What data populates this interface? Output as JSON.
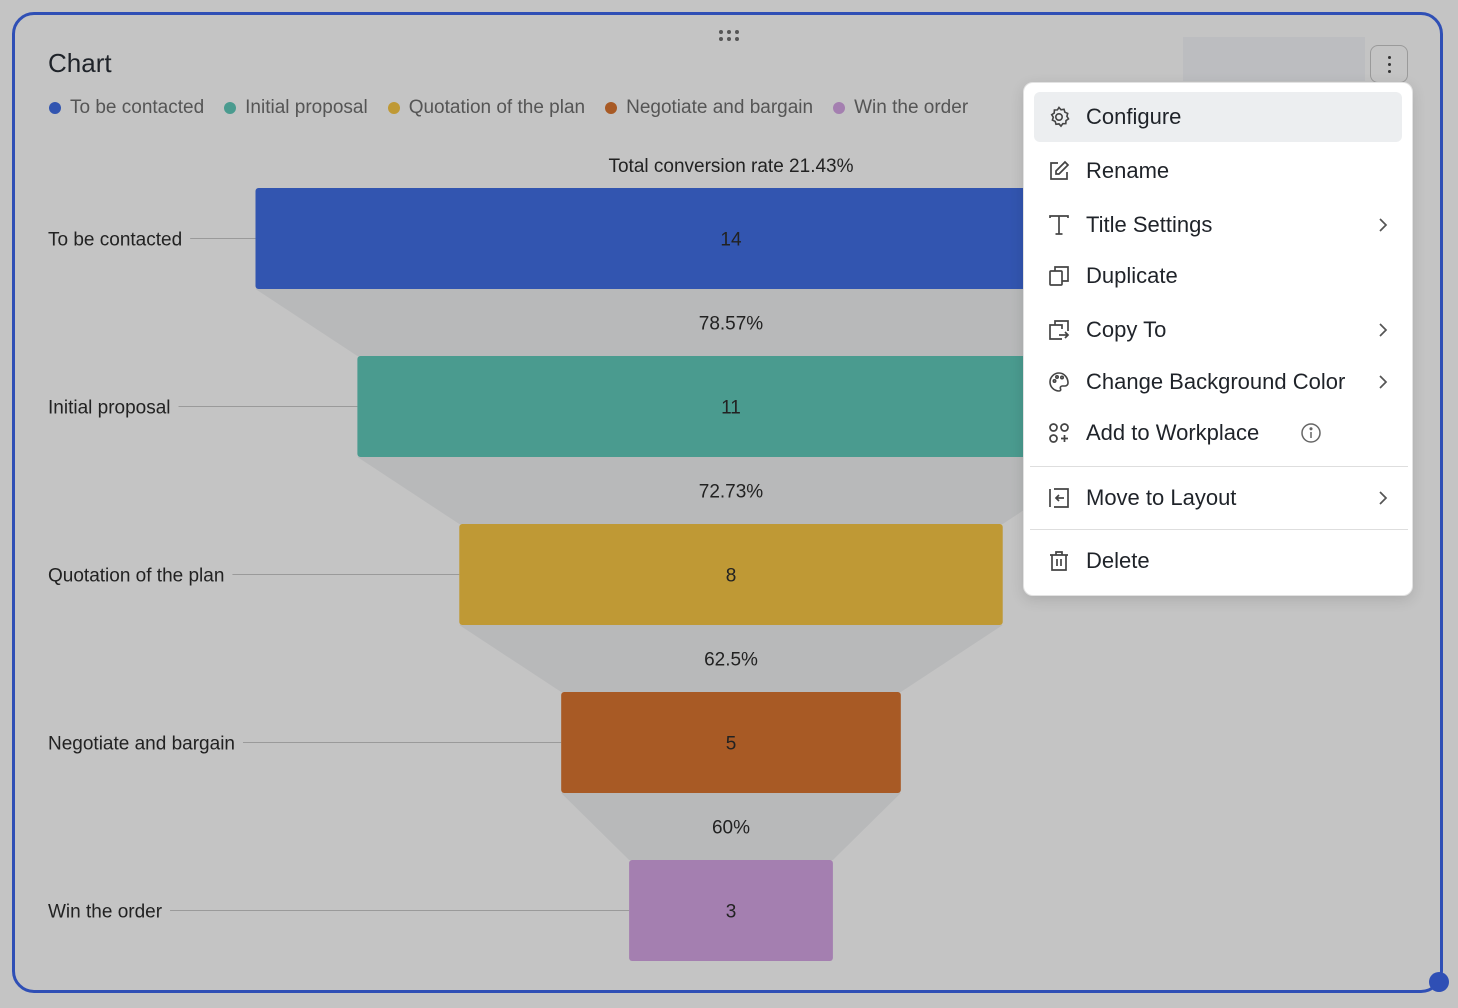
{
  "chart_title": "Chart",
  "legend": [
    {
      "label": "To be contacted",
      "color": "#3255b0"
    },
    {
      "label": "Initial proposal",
      "color": "#4a9b8f"
    },
    {
      "label": "Quotation of the plan",
      "color": "#bf9935"
    },
    {
      "label": "Negotiate and bargain",
      "color": "#a85a25"
    },
    {
      "label": "Win the order",
      "color": "#a47fb0"
    }
  ],
  "chart_data": {
    "type": "funnel",
    "title": "Chart",
    "summary_label": "Total conversion rate 21.43%",
    "categories": [
      "To be contacted",
      "Initial proposal",
      "Quotation of the plan",
      "Negotiate and bargain",
      "Win the order"
    ],
    "values": [
      14,
      11,
      8,
      5,
      3
    ],
    "conversion_rates": [
      "78.57%",
      "72.73%",
      "62.5%",
      "60%"
    ],
    "colors": [
      "#3255b0",
      "#4a9b8f",
      "#bf9935",
      "#a85a25",
      "#a47fb0"
    ]
  },
  "menu": {
    "items": [
      {
        "label": "Configure",
        "icon": "gear-icon",
        "submenu": false
      },
      {
        "label": "Rename",
        "icon": "edit-icon",
        "submenu": false
      },
      {
        "label": "Title Settings",
        "icon": "text-icon",
        "submenu": true
      },
      {
        "label": "Duplicate",
        "icon": "duplicate-icon",
        "submenu": false
      },
      {
        "label": "Copy To",
        "icon": "copy-to-icon",
        "submenu": true
      },
      {
        "label": "Change Background Color",
        "icon": "palette-icon",
        "submenu": true
      },
      {
        "label": "Add to Workplace",
        "icon": "workplace-icon",
        "submenu": false,
        "info": true
      },
      {
        "label": "Move to Layout",
        "icon": "move-layout-icon",
        "submenu": true
      },
      {
        "label": "Delete",
        "icon": "trash-icon",
        "submenu": false
      }
    ]
  }
}
